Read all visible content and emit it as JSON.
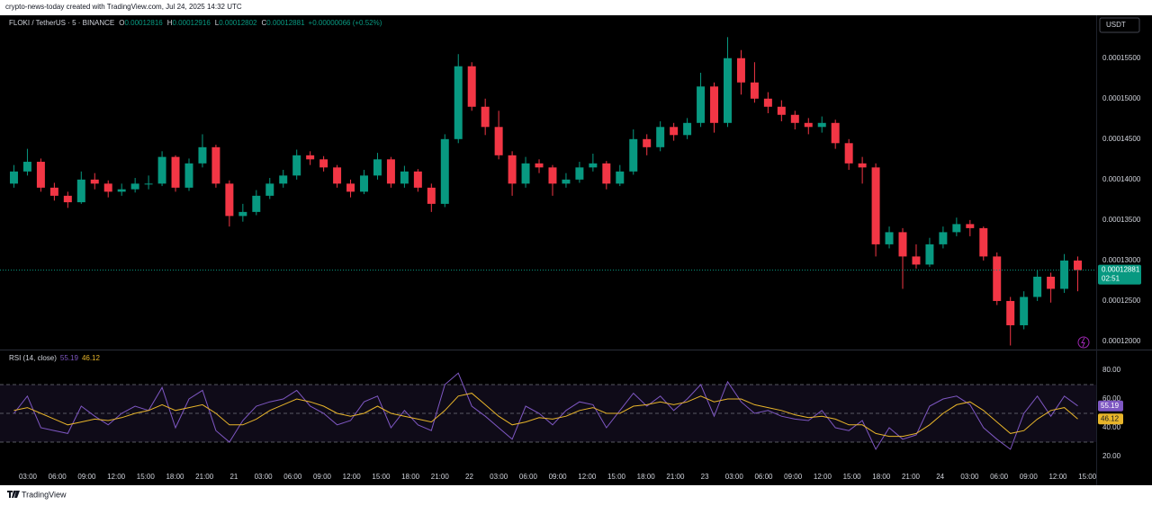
{
  "header": {
    "caption": "crypto-news-today created with TradingView.com, Jul 24, 2025 14:32 UTC"
  },
  "legend": {
    "symbol": "FLOKI / TetherUS · 5 · BINANCE",
    "ohlc": [
      {
        "label": "O",
        "value": "0.00012816"
      },
      {
        "label": "H",
        "value": "0.00012916"
      },
      {
        "label": "L",
        "value": "0.00012802"
      },
      {
        "label": "C",
        "value": "0.00012881"
      }
    ],
    "change": "+0.00000066 (+0.52%)"
  },
  "currency": "USDT",
  "countdown": "02:51",
  "footer": {
    "brand": "TradingView"
  },
  "time_axis": [
    "03:00",
    "06:00",
    "09:00",
    "12:00",
    "15:00",
    "18:00",
    "21:00",
    "21",
    "03:00",
    "06:00",
    "09:00",
    "12:00",
    "15:00",
    "18:00",
    "21:00",
    "22",
    "03:00",
    "06:00",
    "09:00",
    "12:00",
    "15:00",
    "18:00",
    "21:00",
    "23",
    "03:00",
    "06:00",
    "09:00",
    "12:00",
    "15:00",
    "18:00",
    "21:00",
    "24",
    "03:00",
    "06:00",
    "09:00",
    "12:00",
    "15:00"
  ],
  "chart_data": [
    {
      "type": "candlestick",
      "up_color": "#089981",
      "down_color": "#f23645",
      "last_price_line": true,
      "open": [
        0.0001395,
        0.000141,
        0.0001422,
        0.000139,
        0.000138,
        0.0001372,
        0.00014,
        0.0001395,
        0.0001385,
        0.0001388,
        0.0001395,
        0.0001395,
        0.0001428,
        0.000139,
        0.000142,
        0.000144,
        0.0001395,
        0.0001355,
        0.000136,
        0.000138,
        0.0001395,
        0.0001405,
        0.000143,
        0.0001425,
        0.0001415,
        0.0001395,
        0.0001385,
        0.0001405,
        0.0001425,
        0.0001395,
        0.000141,
        0.000139,
        0.000137,
        0.000145,
        0.000154,
        0.000149,
        0.0001465,
        0.000143,
        0.0001395,
        0.000142,
        0.0001415,
        0.0001395,
        0.00014,
        0.0001415,
        0.000142,
        0.0001395,
        0.000141,
        0.000145,
        0.000144,
        0.0001465,
        0.0001455,
        0.000147,
        0.0001515,
        0.000147,
        0.000155,
        0.000152,
        0.00015,
        0.000149,
        0.000148,
        0.000147,
        0.0001465,
        0.000147,
        0.0001445,
        0.000142,
        0.0001415,
        0.000132,
        0.0001335,
        0.0001305,
        0.0001295,
        0.000132,
        0.0001335,
        0.0001345,
        0.000134,
        0.0001305,
        0.000125,
        0.000122,
        0.0001255,
        0.000128,
        0.0001265,
        0.00013
      ],
      "high": [
        0.0001418,
        0.0001438,
        0.0001426,
        0.0001396,
        0.0001385,
        0.000141,
        0.0001408,
        0.0001399,
        0.0001395,
        0.0001402,
        0.0001405,
        0.0001435,
        0.000143,
        0.0001426,
        0.0001456,
        0.0001443,
        0.0001399,
        0.000137,
        0.0001387,
        0.0001402,
        0.0001412,
        0.0001437,
        0.0001435,
        0.0001429,
        0.0001418,
        0.00014,
        0.0001412,
        0.0001433,
        0.0001428,
        0.0001417,
        0.0001413,
        0.0001395,
        0.0001456,
        0.0001555,
        0.0001545,
        0.00015,
        0.0001485,
        0.0001435,
        0.0001428,
        0.0001425,
        0.0001418,
        0.0001408,
        0.0001422,
        0.0001432,
        0.0001423,
        0.0001418,
        0.0001462,
        0.0001456,
        0.0001472,
        0.000147,
        0.0001476,
        0.0001532,
        0.000152,
        0.0001576,
        0.000156,
        0.0001545,
        0.0001508,
        0.0001498,
        0.0001485,
        0.0001476,
        0.0001478,
        0.0001474,
        0.000145,
        0.0001428,
        0.000142,
        0.0001342,
        0.000134,
        0.000132,
        0.0001328,
        0.0001342,
        0.0001353,
        0.000135,
        0.0001342,
        0.000131,
        0.0001255,
        0.0001262,
        0.0001288,
        0.0001285,
        0.0001308,
        0.0001305
      ],
      "low": [
        0.000139,
        0.0001405,
        0.0001385,
        0.0001374,
        0.0001365,
        0.000137,
        0.0001388,
        0.0001378,
        0.000138,
        0.0001384,
        0.0001388,
        0.0001392,
        0.0001385,
        0.0001386,
        0.0001415,
        0.000139,
        0.0001342,
        0.0001348,
        0.0001356,
        0.0001376,
        0.000139,
        0.00014,
        0.0001418,
        0.000141,
        0.000139,
        0.0001378,
        0.0001382,
        0.00014,
        0.000139,
        0.000139,
        0.0001385,
        0.000136,
        0.0001366,
        0.0001445,
        0.0001485,
        0.0001455,
        0.0001425,
        0.000138,
        0.000139,
        0.0001408,
        0.000138,
        0.000139,
        0.0001396,
        0.000141,
        0.0001388,
        0.0001392,
        0.0001406,
        0.000143,
        0.0001435,
        0.0001448,
        0.000145,
        0.0001465,
        0.0001458,
        0.0001465,
        0.0001505,
        0.0001495,
        0.0001482,
        0.0001472,
        0.0001462,
        0.0001456,
        0.0001458,
        0.0001438,
        0.0001412,
        0.0001395,
        0.0001305,
        0.0001315,
        0.0001265,
        0.000129,
        0.0001292,
        0.0001315,
        0.000133,
        0.000133,
        0.00013,
        0.0001245,
        0.0001195,
        0.0001215,
        0.000125,
        0.0001248,
        0.000126,
        0.0001262
      ],
      "close": [
        0.000141,
        0.0001422,
        0.000139,
        0.000138,
        0.0001372,
        0.00014,
        0.0001395,
        0.0001385,
        0.0001388,
        0.0001395,
        0.0001395,
        0.0001428,
        0.000139,
        0.000142,
        0.000144,
        0.0001395,
        0.0001355,
        0.000136,
        0.000138,
        0.0001395,
        0.0001405,
        0.000143,
        0.0001425,
        0.0001415,
        0.0001395,
        0.0001385,
        0.0001405,
        0.0001425,
        0.0001395,
        0.000141,
        0.000139,
        0.000137,
        0.000145,
        0.000154,
        0.000149,
        0.0001465,
        0.000143,
        0.0001395,
        0.000142,
        0.0001415,
        0.0001395,
        0.00014,
        0.0001415,
        0.000142,
        0.0001395,
        0.000141,
        0.000145,
        0.000144,
        0.0001465,
        0.0001455,
        0.000147,
        0.0001515,
        0.000147,
        0.000155,
        0.000152,
        0.00015,
        0.000149,
        0.000148,
        0.000147,
        0.0001465,
        0.000147,
        0.0001445,
        0.000142,
        0.0001415,
        0.000132,
        0.0001335,
        0.0001305,
        0.0001295,
        0.000132,
        0.0001335,
        0.0001345,
        0.000134,
        0.0001305,
        0.000125,
        0.000122,
        0.0001255,
        0.000128,
        0.0001265,
        0.00013,
        0.00012881
      ],
      "ylim": [
        0.000119,
        0.0001603
      ],
      "yticks": [
        {
          "value": 0.00012,
          "label": "0.00012000"
        },
        {
          "value": 0.000125,
          "label": "0.00012500"
        },
        {
          "value": 0.00013,
          "label": "0.00013000"
        },
        {
          "value": 0.000135,
          "label": "0.00013500"
        },
        {
          "value": 0.00014,
          "label": "0.00014000"
        },
        {
          "value": 0.000145,
          "label": "0.00014500"
        },
        {
          "value": 0.00015,
          "label": "0.00015000"
        },
        {
          "value": 0.000155,
          "label": "0.00015500"
        }
      ]
    },
    {
      "type": "line",
      "title": "RSI (14, close)",
      "series": [
        {
          "color": "#7e57c2",
          "values": [
            50,
            62,
            40,
            38,
            36,
            55,
            48,
            42,
            50,
            55,
            52,
            68,
            40,
            60,
            66,
            38,
            30,
            45,
            55,
            58,
            60,
            66,
            55,
            50,
            42,
            45,
            58,
            62,
            40,
            52,
            42,
            38,
            70,
            78,
            55,
            48,
            40,
            32,
            55,
            50,
            42,
            52,
            58,
            56,
            40,
            52,
            64,
            55,
            62,
            52,
            60,
            70,
            48,
            72,
            58,
            50,
            52,
            48,
            46,
            45,
            52,
            40,
            38,
            45,
            25,
            40,
            32,
            35,
            55,
            60,
            62,
            56,
            40,
            32,
            25,
            50,
            62,
            48,
            62,
            55.19
          ]
        },
        {
          "color": "#e8b52a",
          "values": [
            52,
            54,
            50,
            46,
            42,
            44,
            46,
            45,
            47,
            50,
            52,
            56,
            52,
            54,
            56,
            50,
            42,
            42,
            46,
            52,
            56,
            60,
            58,
            55,
            50,
            48,
            50,
            55,
            50,
            48,
            46,
            44,
            52,
            62,
            64,
            56,
            48,
            42,
            44,
            47,
            46,
            48,
            52,
            54,
            50,
            50,
            55,
            56,
            58,
            56,
            58,
            62,
            58,
            60,
            60,
            56,
            54,
            52,
            49,
            47,
            48,
            46,
            42,
            42,
            36,
            34,
            34,
            36,
            42,
            50,
            56,
            58,
            52,
            44,
            36,
            38,
            46,
            52,
            54,
            46.12
          ]
        }
      ],
      "bands": [
        30,
        50,
        70
      ],
      "ylim": [
        12.5,
        93.75
      ],
      "yticks": [
        {
          "value": 20,
          "label": "20.00"
        },
        {
          "value": 40,
          "label": "40.00"
        },
        {
          "value": 60,
          "label": "60.00"
        },
        {
          "value": 80,
          "label": "80.00"
        }
      ]
    }
  ]
}
